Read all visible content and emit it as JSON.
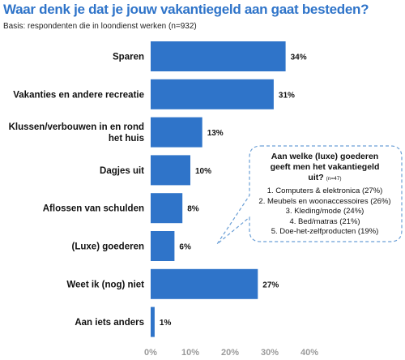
{
  "header": {
    "title": "Waar denk je dat je jouw vakantiegeld aan gaat besteden?",
    "subtitle": "Basis: respondenten die in loondienst werken (n=932)"
  },
  "colors": {
    "bar": "#2f74c9",
    "title": "#2f74c9",
    "callout_border": "#6b9fd6",
    "tick": "#9a9a9a"
  },
  "chart_data": {
    "type": "bar",
    "orientation": "horizontal",
    "categories": [
      "Sparen",
      "Vakanties en andere recreatie",
      "Klussen/verbouwen in en rond het huis",
      "Dagjes uit",
      "Aflossen van schulden",
      "(Luxe) goederen",
      "Weet ik (nog) niet",
      "Aan iets anders"
    ],
    "values": [
      34,
      31,
      13,
      10,
      8,
      6,
      27,
      1
    ],
    "value_labels": [
      "34%",
      "31%",
      "13%",
      "10%",
      "8%",
      "6%",
      "27%",
      "1%"
    ],
    "xlim": [
      0,
      40
    ],
    "xticks": [
      "0%",
      "10%",
      "20%",
      "30%",
      "40%"
    ],
    "grid": false
  },
  "callout": {
    "title": "Aan welke (luxe) goederen geeft men het vakantiegeld uit?",
    "n": "(n=47)",
    "items": [
      "1.   Computers & elektronica (27%)",
      "2.   Meubels en woonaccessoires (26%)",
      "3.   Kleding/mode (24%)",
      "4.   Bed/matras (21%)",
      "5.   Doe-het-zelfproducten (19%)"
    ]
  }
}
